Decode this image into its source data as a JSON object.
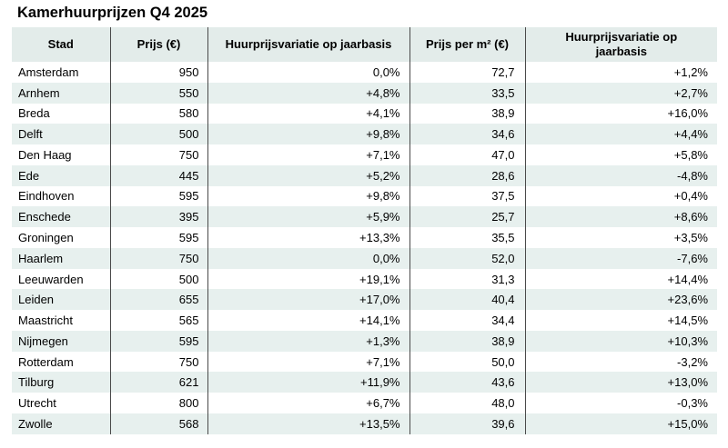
{
  "title": "Kamerhuurprijzen Q4 2025",
  "colors": {
    "header_bg": "#e3ecea",
    "stripe_bg": "#e7f0ee",
    "divider": "#4a4a4a",
    "text": "#000000"
  },
  "chart_data": {
    "type": "table",
    "title": "Kamerhuurprijzen Q4 2025",
    "columns": [
      "Stad",
      "Prijs (€)",
      "Huurprijsvariatie op jaarbasis",
      "Prijs per m² (€)",
      "Huurprijsvariatie op jaarbasis"
    ],
    "rows": [
      [
        "Amsterdam",
        "950",
        "0,0%",
        "72,7",
        "+1,2%"
      ],
      [
        "Arnhem",
        "550",
        "+4,8%",
        "33,5",
        "+2,7%"
      ],
      [
        "Breda",
        "580",
        "+4,1%",
        "38,9",
        "+16,0%"
      ],
      [
        "Delft",
        "500",
        "+9,8%",
        "34,6",
        "+4,4%"
      ],
      [
        "Den Haag",
        "750",
        "+7,1%",
        "47,0",
        "+5,8%"
      ],
      [
        "Ede",
        "445",
        "+5,2%",
        "28,6",
        "-4,8%"
      ],
      [
        "Eindhoven",
        "595",
        "+9,8%",
        "37,5",
        "+0,4%"
      ],
      [
        "Enschede",
        "395",
        "+5,9%",
        "25,7",
        "+8,6%"
      ],
      [
        "Groningen",
        "595",
        "+13,3%",
        "35,5",
        "+3,5%"
      ],
      [
        "Haarlem",
        "750",
        "0,0%",
        "52,0",
        "-7,6%"
      ],
      [
        "Leeuwarden",
        "500",
        "+19,1%",
        "31,3",
        "+14,4%"
      ],
      [
        "Leiden",
        "655",
        "+17,0%",
        "40,4",
        "+23,6%"
      ],
      [
        "Maastricht",
        "565",
        "+14,1%",
        "34,4",
        "+14,5%"
      ],
      [
        "Nijmegen",
        "595",
        "+1,3%",
        "38,9",
        "+10,3%"
      ],
      [
        "Rotterdam",
        "750",
        "+7,1%",
        "50,0",
        "-3,2%"
      ],
      [
        "Tilburg",
        "621",
        "+11,9%",
        "43,6",
        "+13,0%"
      ],
      [
        "Utrecht",
        "800",
        "+6,7%",
        "48,0",
        "-0,3%"
      ],
      [
        "Zwolle",
        "568",
        "+13,5%",
        "39,6",
        "+15,0%"
      ]
    ]
  }
}
